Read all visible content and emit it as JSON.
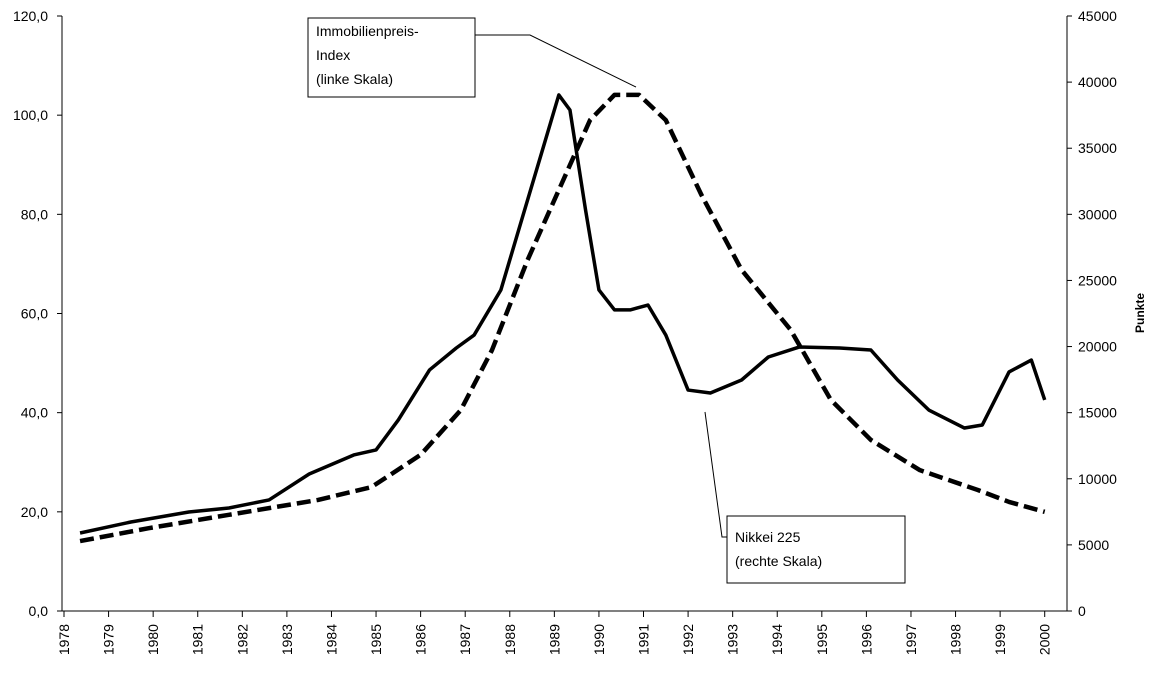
{
  "chart_data": {
    "type": "line",
    "xlim": [
      1978,
      2000.5
    ],
    "xticks": [
      1978,
      1979,
      1980,
      1981,
      1982,
      1983,
      1984,
      1985,
      1986,
      1987,
      1988,
      1989,
      1990,
      1991,
      1992,
      1993,
      1994,
      1995,
      1996,
      1997,
      1998,
      1999,
      2000
    ],
    "ylim": [
      0,
      120
    ],
    "yticks": [
      {
        "value": 0,
        "label": "0,0"
      },
      {
        "value": 20,
        "label": "20,0"
      },
      {
        "value": 40,
        "label": "40,0"
      },
      {
        "value": 60,
        "label": "60,0"
      },
      {
        "value": 80,
        "label": "80,0"
      },
      {
        "value": 100,
        "label": "100,0"
      },
      {
        "value": 120,
        "label": "120,0"
      }
    ],
    "y2lim": [
      0,
      45000
    ],
    "y2ticks": [
      0,
      5000,
      10000,
      15000,
      20000,
      25000,
      30000,
      35000,
      40000,
      45000
    ],
    "y2label": "Punkte",
    "series": [
      {
        "color": "#000000",
        "dashed": true,
        "x": [
          1978.36,
          1979.9,
          1981.7,
          1983.7,
          1984.9,
          1986.0,
          1986.9,
          1987.6,
          1988.4,
          1989.1,
          1989.8,
          1990.35,
          1990.9,
          1991.5,
          1992.3,
          1993.2,
          1994.3,
          1995.2,
          1996.1,
          1997.2,
          1998.5,
          1999.2,
          2000.0
        ],
        "values": [
          14.1,
          16.7,
          19.4,
          22.4,
          25.0,
          31.5,
          40.5,
          52.6,
          70.8,
          84.9,
          99.0,
          104.1,
          104.1,
          99.0,
          83.9,
          68.8,
          56.7,
          42.6,
          34.5,
          28.4,
          24.4,
          22.0,
          20.0
        ]
      },
      {
        "color": "#000000",
        "dashed": false,
        "axis": "y2",
        "x": [
          1978.36,
          1979.5,
          1980.8,
          1981.7,
          1982.6,
          1983.5,
          1984.5,
          1985.0,
          1985.5,
          1986.2,
          1986.8,
          1987.2,
          1987.8,
          1988.2,
          1988.8,
          1989.1,
          1989.35,
          1989.7,
          1990.0,
          1990.35,
          1990.7,
          1991.1,
          1991.5,
          1992.0,
          1992.5,
          1993.2,
          1993.8,
          1994.5,
          1995.4,
          1996.1,
          1996.7,
          1997.4,
          1998.2,
          1998.6,
          1999.2,
          1999.7,
          2000.0
        ],
        "values": [
          5900,
          6730,
          7490,
          7790,
          8400,
          10360,
          11800,
          12180,
          14450,
          18230,
          19890,
          20870,
          24280,
          28820,
          35620,
          39030,
          37890,
          30330,
          24280,
          22770,
          22770,
          23140,
          20870,
          16710,
          16490,
          17470,
          19210,
          19970,
          19890,
          19740,
          17470,
          15200,
          13840,
          14070,
          18080,
          18980,
          15960
        ]
      }
    ],
    "annotations": [
      {
        "lines": [
          "Immobilienpreis-",
          "Index",
          "(linke Skala)"
        ]
      },
      {
        "lines": [
          "Nikkei 225",
          "(rechte Skala)"
        ]
      }
    ]
  }
}
